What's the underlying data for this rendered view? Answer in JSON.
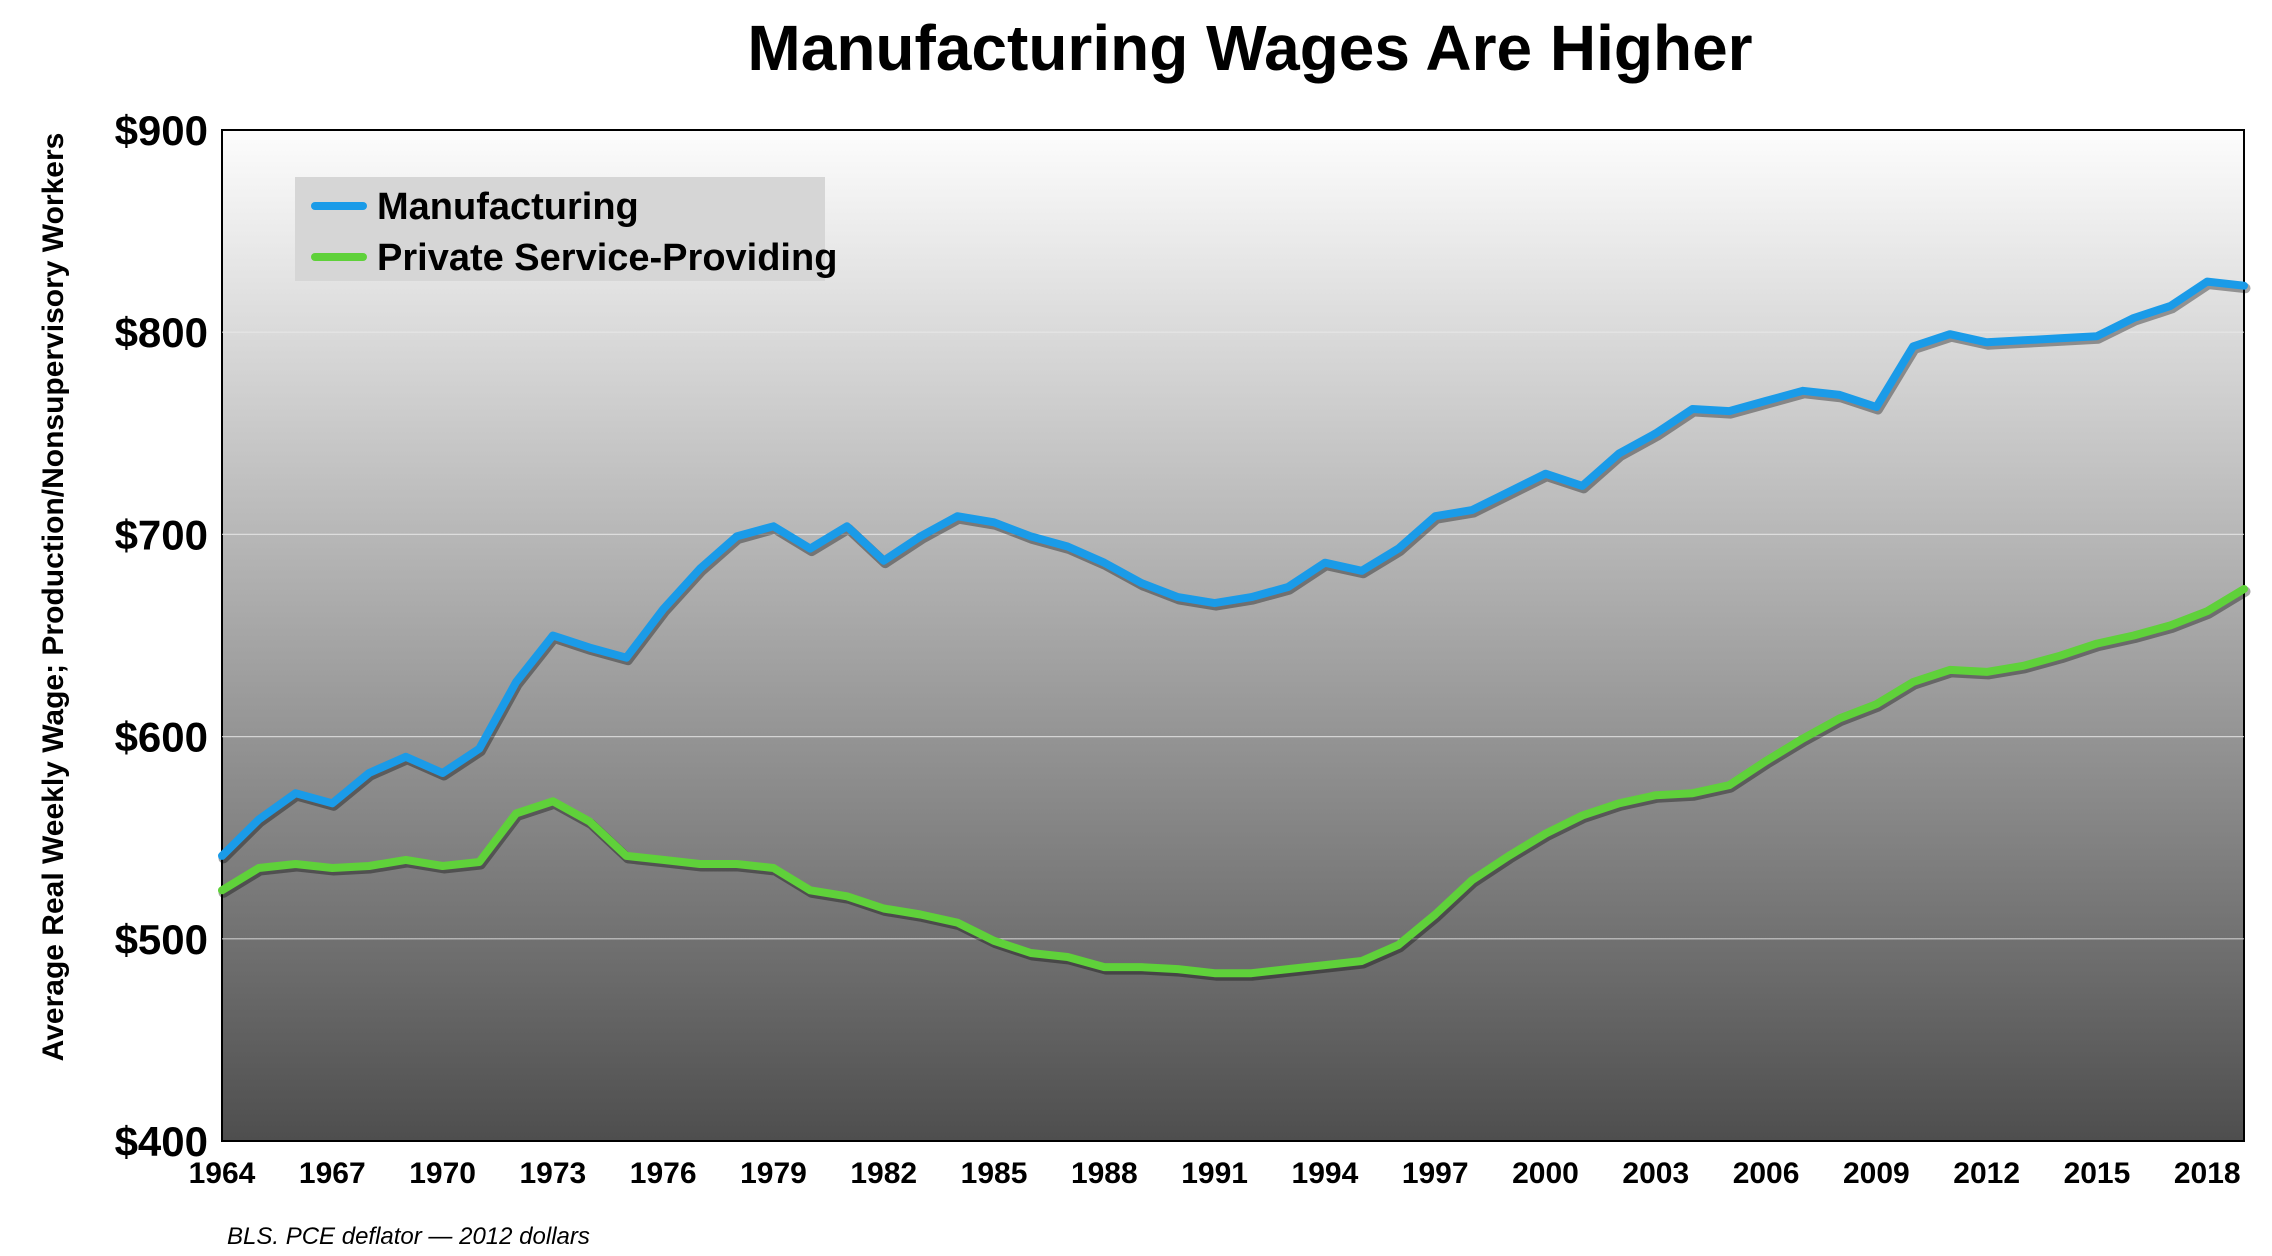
{
  "chart_data": {
    "type": "line",
    "title": "Manufacturing Wages Are Higher",
    "ylabel": "Average Real Weekly Wage; Production/Nonsupervisory Workers",
    "xlabel": "",
    "source_note": "BLS. PCE deflator — 2012 dollars",
    "xlim": [
      1964,
      2019
    ],
    "ylim": [
      400,
      900
    ],
    "y_ticks": [
      {
        "value": 400,
        "label": "$400"
      },
      {
        "value": 500,
        "label": "$500"
      },
      {
        "value": 600,
        "label": "$600"
      },
      {
        "value": 700,
        "label": "$700"
      },
      {
        "value": 800,
        "label": "$800"
      },
      {
        "value": 900,
        "label": "$900"
      }
    ],
    "x_ticks": [
      {
        "value": 1964,
        "label": "1964"
      },
      {
        "value": 1967,
        "label": "1967"
      },
      {
        "value": 1970,
        "label": "1970"
      },
      {
        "value": 1973,
        "label": "1973"
      },
      {
        "value": 1976,
        "label": "1976"
      },
      {
        "value": 1979,
        "label": "1979"
      },
      {
        "value": 1982,
        "label": "1982"
      },
      {
        "value": 1985,
        "label": "1985"
      },
      {
        "value": 1988,
        "label": "1988"
      },
      {
        "value": 1991,
        "label": "1991"
      },
      {
        "value": 1994,
        "label": "1994"
      },
      {
        "value": 1997,
        "label": "1997"
      },
      {
        "value": 2000,
        "label": "2000"
      },
      {
        "value": 2003,
        "label": "2003"
      },
      {
        "value": 2006,
        "label": "2006"
      },
      {
        "value": 2009,
        "label": "2009"
      },
      {
        "value": 2012,
        "label": "2012"
      },
      {
        "value": 2015,
        "label": "2015"
      },
      {
        "value": 2018,
        "label": "2018"
      }
    ],
    "grid": true,
    "legend_position": "top-left",
    "x": [
      1964,
      1965,
      1966,
      1967,
      1968,
      1969,
      1970,
      1971,
      1972,
      1973,
      1974,
      1975,
      1976,
      1977,
      1978,
      1979,
      1980,
      1981,
      1982,
      1983,
      1984,
      1985,
      1986,
      1987,
      1988,
      1989,
      1990,
      1991,
      1992,
      1993,
      1994,
      1995,
      1996,
      1997,
      1998,
      1999,
      2000,
      2001,
      2002,
      2003,
      2004,
      2005,
      2006,
      2007,
      2008,
      2009,
      2010,
      2011,
      2012,
      2013,
      2014,
      2015,
      2016,
      2017,
      2018,
      2019
    ],
    "series": [
      {
        "name": "Manufacturing",
        "color": "#1a9be8",
        "values": [
          541,
          559,
          572,
          567,
          582,
          590,
          582,
          594,
          627,
          650,
          644,
          639,
          663,
          683,
          699,
          704,
          693,
          704,
          687,
          699,
          709,
          706,
          699,
          694,
          686,
          676,
          669,
          666,
          669,
          674,
          686,
          682,
          693,
          709,
          712,
          721,
          730,
          724,
          740,
          750,
          762,
          761,
          766,
          771,
          769,
          763,
          793,
          799,
          795,
          796,
          797,
          798,
          807,
          813,
          825,
          823
        ]
      },
      {
        "name": "Private Service-Providing",
        "color": "#5fd13a",
        "values": [
          524,
          535,
          537,
          535,
          536,
          539,
          536,
          538,
          562,
          568,
          558,
          541,
          539,
          537,
          537,
          535,
          524,
          521,
          515,
          512,
          508,
          499,
          493,
          491,
          486,
          486,
          485,
          483,
          483,
          485,
          487,
          489,
          497,
          512,
          529,
          541,
          552,
          561,
          567,
          571,
          572,
          576,
          588,
          599,
          609,
          616,
          627,
          633,
          632,
          635,
          640,
          646,
          650,
          655,
          662,
          673
        ]
      }
    ]
  }
}
